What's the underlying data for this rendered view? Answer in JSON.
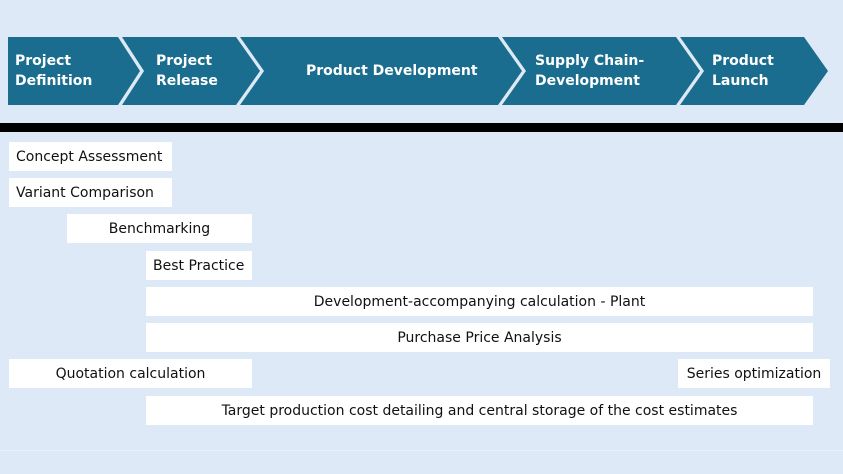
{
  "colors": {
    "phase_fill": "#1a6d8e",
    "background": "#dde9f6",
    "bar_fill": "#ffffff"
  },
  "phases": [
    {
      "label": "Project\nDefinition"
    },
    {
      "label": "Project\nRelease"
    },
    {
      "label": "Product Development"
    },
    {
      "label": "Supply Chain-\nDevelopment"
    },
    {
      "label": "Product\nLaunch"
    }
  ],
  "activities": [
    {
      "label": "Concept Assessment"
    },
    {
      "label": "Variant Comparison"
    },
    {
      "label": "Benchmarking"
    },
    {
      "label": "Best Practice"
    },
    {
      "label": "Development-accompanying calculation - Plant"
    },
    {
      "label": "Purchase Price Analysis"
    },
    {
      "label": "Quotation calculation"
    },
    {
      "label": "Series optimization"
    },
    {
      "label": "Target production cost detailing and central storage of the cost estimates"
    }
  ]
}
